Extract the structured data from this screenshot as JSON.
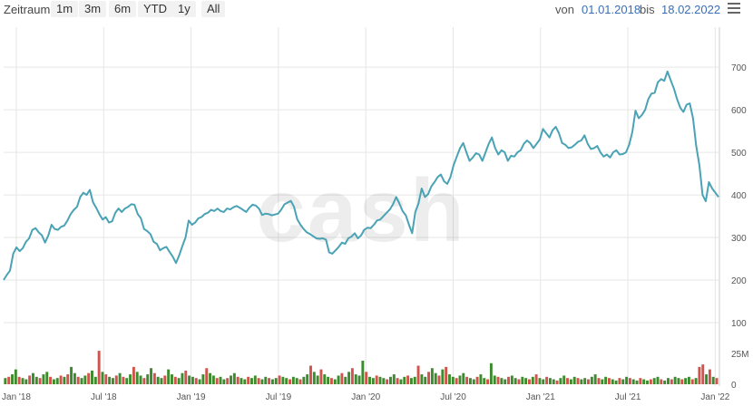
{
  "toolbar": {
    "zoom_label": "Zeitraum",
    "buttons": [
      "1m",
      "3m",
      "6m",
      "YTD",
      "1y",
      "All"
    ],
    "from_label": "von",
    "from_date": "01.01.2018",
    "to_label": "bis",
    "to_date": "18.02.2022",
    "menu_icon": "hamburger-menu-icon"
  },
  "watermark": "cash",
  "colors": {
    "line": "#4aa3b5",
    "vol_up": "#3d8b2f",
    "vol_down": "#d0534c",
    "grid": "#e6e6e6",
    "link": "#3a6fb5"
  },
  "chart_data": {
    "type": "line",
    "x_start": "2018-01-01",
    "x_end": "2022-02-18",
    "x_ticks": [
      "Jan '18",
      "Jul '18",
      "Jan '19",
      "Jul '19",
      "Jan '20",
      "Jul '20",
      "Jan '21",
      "Jul '21",
      "Jan '22"
    ],
    "y_ticks": [
      "200",
      "300",
      "400",
      "500",
      "600",
      "700"
    ],
    "ylim": [
      100,
      760
    ],
    "volume_ticks": [
      "25M",
      "0"
    ],
    "volume_ylim": [
      0,
      30
    ],
    "price": [
      200,
      212,
      222,
      262,
      277,
      268,
      275,
      290,
      298,
      318,
      322,
      312,
      305,
      288,
      305,
      330,
      320,
      318,
      325,
      328,
      340,
      355,
      365,
      372,
      395,
      405,
      400,
      412,
      383,
      370,
      355,
      342,
      348,
      335,
      338,
      358,
      368,
      360,
      368,
      372,
      378,
      377,
      355,
      345,
      320,
      315,
      308,
      290,
      285,
      270,
      275,
      278,
      266,
      255,
      240,
      258,
      280,
      300,
      340,
      330,
      335,
      345,
      348,
      355,
      358,
      365,
      362,
      368,
      362,
      360,
      368,
      366,
      371,
      374,
      370,
      365,
      360,
      370,
      377,
      375,
      368,
      353,
      356,
      355,
      352,
      354,
      356,
      366,
      378,
      382,
      386,
      372,
      343,
      330,
      320,
      312,
      308,
      303,
      298,
      297,
      298,
      295,
      265,
      262,
      270,
      278,
      288,
      285,
      298,
      302,
      310,
      298,
      305,
      318,
      323,
      322,
      330,
      340,
      342,
      350,
      358,
      366,
      378,
      395,
      380,
      362,
      352,
      330,
      310,
      360,
      380,
      415,
      395,
      402,
      420,
      430,
      442,
      448,
      432,
      426,
      442,
      470,
      490,
      510,
      522,
      500,
      480,
      488,
      498,
      495,
      480,
      500,
      520,
      535,
      510,
      495,
      505,
      500,
      480,
      492,
      490,
      500,
      505,
      520,
      528,
      522,
      510,
      520,
      530,
      555,
      545,
      535,
      552,
      560,
      545,
      522,
      518,
      510,
      512,
      518,
      525,
      528,
      540,
      520,
      508,
      510,
      515,
      500,
      490,
      495,
      488,
      500,
      505,
      495,
      496,
      500,
      518,
      548,
      598,
      580,
      588,
      600,
      625,
      638,
      640,
      665,
      672,
      668,
      690,
      670,
      650,
      625,
      605,
      595,
      612,
      615,
      580,
      515,
      470,
      400,
      385,
      430,
      415,
      405,
      395
    ],
    "volume": [
      {
        "v": 5,
        "d": "up"
      },
      {
        "v": 6,
        "d": "down"
      },
      {
        "v": 8,
        "d": "up"
      },
      {
        "v": 12,
        "d": "up"
      },
      {
        "v": 6,
        "d": "down"
      },
      {
        "v": 5,
        "d": "up"
      },
      {
        "v": 4,
        "d": "up"
      },
      {
        "v": 7,
        "d": "down"
      },
      {
        "v": 9,
        "d": "up"
      },
      {
        "v": 6,
        "d": "up"
      },
      {
        "v": 5,
        "d": "down"
      },
      {
        "v": 8,
        "d": "up"
      },
      {
        "v": 10,
        "d": "up"
      },
      {
        "v": 6,
        "d": "down"
      },
      {
        "v": 4,
        "d": "up"
      },
      {
        "v": 5,
        "d": "up"
      },
      {
        "v": 7,
        "d": "down"
      },
      {
        "v": 6,
        "d": "up"
      },
      {
        "v": 8,
        "d": "down"
      },
      {
        "v": 14,
        "d": "up"
      },
      {
        "v": 9,
        "d": "up"
      },
      {
        "v": 6,
        "d": "down"
      },
      {
        "v": 5,
        "d": "up"
      },
      {
        "v": 7,
        "d": "up"
      },
      {
        "v": 9,
        "d": "down"
      },
      {
        "v": 11,
        "d": "up"
      },
      {
        "v": 6,
        "d": "up"
      },
      {
        "v": 27,
        "d": "down"
      },
      {
        "v": 10,
        "d": "up"
      },
      {
        "v": 8,
        "d": "down"
      },
      {
        "v": 6,
        "d": "up"
      },
      {
        "v": 5,
        "d": "up"
      },
      {
        "v": 7,
        "d": "down"
      },
      {
        "v": 9,
        "d": "up"
      },
      {
        "v": 6,
        "d": "down"
      },
      {
        "v": 5,
        "d": "up"
      },
      {
        "v": 8,
        "d": "up"
      },
      {
        "v": 14,
        "d": "down"
      },
      {
        "v": 10,
        "d": "up"
      },
      {
        "v": 7,
        "d": "up"
      },
      {
        "v": 5,
        "d": "down"
      },
      {
        "v": 8,
        "d": "up"
      },
      {
        "v": 13,
        "d": "up"
      },
      {
        "v": 9,
        "d": "down"
      },
      {
        "v": 6,
        "d": "up"
      },
      {
        "v": 5,
        "d": "up"
      },
      {
        "v": 7,
        "d": "down"
      },
      {
        "v": 12,
        "d": "up"
      },
      {
        "v": 8,
        "d": "up"
      },
      {
        "v": 6,
        "d": "down"
      },
      {
        "v": 5,
        "d": "up"
      },
      {
        "v": 9,
        "d": "up"
      },
      {
        "v": 11,
        "d": "down"
      },
      {
        "v": 7,
        "d": "up"
      },
      {
        "v": 6,
        "d": "up"
      },
      {
        "v": 5,
        "d": "down"
      },
      {
        "v": 4,
        "d": "up"
      },
      {
        "v": 8,
        "d": "up"
      },
      {
        "v": 13,
        "d": "down"
      },
      {
        "v": 9,
        "d": "up"
      },
      {
        "v": 7,
        "d": "up"
      },
      {
        "v": 5,
        "d": "down"
      },
      {
        "v": 6,
        "d": "up"
      },
      {
        "v": 4,
        "d": "up"
      },
      {
        "v": 5,
        "d": "down"
      },
      {
        "v": 7,
        "d": "up"
      },
      {
        "v": 9,
        "d": "up"
      },
      {
        "v": 6,
        "d": "down"
      },
      {
        "v": 5,
        "d": "up"
      },
      {
        "v": 4,
        "d": "up"
      },
      {
        "v": 6,
        "d": "down"
      },
      {
        "v": 5,
        "d": "up"
      },
      {
        "v": 7,
        "d": "up"
      },
      {
        "v": 5,
        "d": "down"
      },
      {
        "v": 4,
        "d": "up"
      },
      {
        "v": 6,
        "d": "up"
      },
      {
        "v": 5,
        "d": "down"
      },
      {
        "v": 4,
        "d": "up"
      },
      {
        "v": 5,
        "d": "up"
      },
      {
        "v": 7,
        "d": "down"
      },
      {
        "v": 6,
        "d": "up"
      },
      {
        "v": 5,
        "d": "up"
      },
      {
        "v": 4,
        "d": "down"
      },
      {
        "v": 6,
        "d": "up"
      },
      {
        "v": 5,
        "d": "up"
      },
      {
        "v": 4,
        "d": "down"
      },
      {
        "v": 6,
        "d": "up"
      },
      {
        "v": 8,
        "d": "up"
      },
      {
        "v": 15,
        "d": "down"
      },
      {
        "v": 10,
        "d": "up"
      },
      {
        "v": 7,
        "d": "up"
      },
      {
        "v": 12,
        "d": "down"
      },
      {
        "v": 8,
        "d": "up"
      },
      {
        "v": 6,
        "d": "up"
      },
      {
        "v": 5,
        "d": "down"
      },
      {
        "v": 4,
        "d": "up"
      },
      {
        "v": 7,
        "d": "up"
      },
      {
        "v": 9,
        "d": "down"
      },
      {
        "v": 6,
        "d": "up"
      },
      {
        "v": 10,
        "d": "up"
      },
      {
        "v": 13,
        "d": "down"
      },
      {
        "v": 8,
        "d": "up"
      },
      {
        "v": 7,
        "d": "up"
      },
      {
        "v": 19,
        "d": "up"
      },
      {
        "v": 10,
        "d": "down"
      },
      {
        "v": 6,
        "d": "up"
      },
      {
        "v": 5,
        "d": "up"
      },
      {
        "v": 7,
        "d": "down"
      },
      {
        "v": 6,
        "d": "up"
      },
      {
        "v": 5,
        "d": "up"
      },
      {
        "v": 4,
        "d": "down"
      },
      {
        "v": 6,
        "d": "up"
      },
      {
        "v": 8,
        "d": "up"
      },
      {
        "v": 5,
        "d": "down"
      },
      {
        "v": 4,
        "d": "up"
      },
      {
        "v": 6,
        "d": "up"
      },
      {
        "v": 7,
        "d": "down"
      },
      {
        "v": 5,
        "d": "up"
      },
      {
        "v": 6,
        "d": "up"
      },
      {
        "v": 15,
        "d": "down"
      },
      {
        "v": 8,
        "d": "up"
      },
      {
        "v": 6,
        "d": "up"
      },
      {
        "v": 10,
        "d": "down"
      },
      {
        "v": 13,
        "d": "up"
      },
      {
        "v": 9,
        "d": "up"
      },
      {
        "v": 7,
        "d": "down"
      },
      {
        "v": 12,
        "d": "up"
      },
      {
        "v": 14,
        "d": "down"
      },
      {
        "v": 8,
        "d": "up"
      },
      {
        "v": 6,
        "d": "up"
      },
      {
        "v": 5,
        "d": "down"
      },
      {
        "v": 7,
        "d": "up"
      },
      {
        "v": 9,
        "d": "up"
      },
      {
        "v": 6,
        "d": "down"
      },
      {
        "v": 5,
        "d": "up"
      },
      {
        "v": 4,
        "d": "up"
      },
      {
        "v": 6,
        "d": "down"
      },
      {
        "v": 8,
        "d": "up"
      },
      {
        "v": 5,
        "d": "up"
      },
      {
        "v": 4,
        "d": "down"
      },
      {
        "v": 17,
        "d": "up"
      },
      {
        "v": 7,
        "d": "up"
      },
      {
        "v": 6,
        "d": "down"
      },
      {
        "v": 5,
        "d": "up"
      },
      {
        "v": 4,
        "d": "up"
      },
      {
        "v": 6,
        "d": "down"
      },
      {
        "v": 7,
        "d": "up"
      },
      {
        "v": 5,
        "d": "up"
      },
      {
        "v": 4,
        "d": "down"
      },
      {
        "v": 6,
        "d": "up"
      },
      {
        "v": 5,
        "d": "up"
      },
      {
        "v": 4,
        "d": "down"
      },
      {
        "v": 6,
        "d": "up"
      },
      {
        "v": 8,
        "d": "down"
      },
      {
        "v": 5,
        "d": "up"
      },
      {
        "v": 4,
        "d": "up"
      },
      {
        "v": 6,
        "d": "down"
      },
      {
        "v": 5,
        "d": "up"
      },
      {
        "v": 4,
        "d": "up"
      },
      {
        "v": 3,
        "d": "down"
      },
      {
        "v": 5,
        "d": "up"
      },
      {
        "v": 7,
        "d": "up"
      },
      {
        "v": 5,
        "d": "down"
      },
      {
        "v": 4,
        "d": "up"
      },
      {
        "v": 6,
        "d": "up"
      },
      {
        "v": 5,
        "d": "down"
      },
      {
        "v": 4,
        "d": "up"
      },
      {
        "v": 5,
        "d": "up"
      },
      {
        "v": 4,
        "d": "down"
      },
      {
        "v": 6,
        "d": "up"
      },
      {
        "v": 8,
        "d": "up"
      },
      {
        "v": 5,
        "d": "down"
      },
      {
        "v": 4,
        "d": "up"
      },
      {
        "v": 6,
        "d": "up"
      },
      {
        "v": 5,
        "d": "down"
      },
      {
        "v": 4,
        "d": "up"
      },
      {
        "v": 3,
        "d": "up"
      },
      {
        "v": 5,
        "d": "down"
      },
      {
        "v": 4,
        "d": "up"
      },
      {
        "v": 6,
        "d": "up"
      },
      {
        "v": 5,
        "d": "down"
      },
      {
        "v": 4,
        "d": "up"
      },
      {
        "v": 3,
        "d": "up"
      },
      {
        "v": 5,
        "d": "down"
      },
      {
        "v": 4,
        "d": "up"
      },
      {
        "v": 3,
        "d": "up"
      },
      {
        "v": 4,
        "d": "down"
      },
      {
        "v": 5,
        "d": "up"
      },
      {
        "v": 6,
        "d": "up"
      },
      {
        "v": 4,
        "d": "down"
      },
      {
        "v": 3,
        "d": "up"
      },
      {
        "v": 5,
        "d": "up"
      },
      {
        "v": 4,
        "d": "down"
      },
      {
        "v": 6,
        "d": "up"
      },
      {
        "v": 5,
        "d": "up"
      },
      {
        "v": 4,
        "d": "down"
      },
      {
        "v": 5,
        "d": "up"
      },
      {
        "v": 6,
        "d": "up"
      },
      {
        "v": 4,
        "d": "down"
      },
      {
        "v": 5,
        "d": "up"
      },
      {
        "v": 14,
        "d": "down"
      },
      {
        "v": 16,
        "d": "down"
      },
      {
        "v": 8,
        "d": "up"
      },
      {
        "v": 12,
        "d": "down"
      },
      {
        "v": 6,
        "d": "up"
      },
      {
        "v": 5,
        "d": "down"
      }
    ]
  }
}
